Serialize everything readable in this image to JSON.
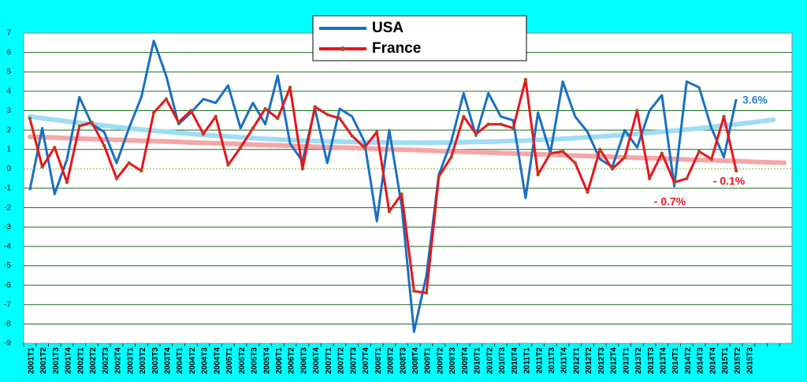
{
  "chart_data": {
    "type": "line",
    "categories": [
      "2001T1",
      "2001T2",
      "2001T3",
      "2001T4",
      "2002T1",
      "2002T2",
      "2002T3",
      "2002T4",
      "2003T1",
      "2003T2",
      "2003T3",
      "2003T4",
      "2004T1",
      "2004T2",
      "2004T3",
      "2004T4",
      "2005T1",
      "2005T2",
      "2005T3",
      "2005T4",
      "2006T1",
      "2006T2",
      "2006T3",
      "2006T4",
      "2007T1",
      "2007T2",
      "2007T3",
      "2007T4",
      "2008T1",
      "2008T2",
      "2008T3",
      "2008T4",
      "2009T1",
      "2009T2",
      "2009T3",
      "2009T4",
      "2010T1",
      "2010T2",
      "2010T3",
      "2010T4",
      "2011T1",
      "2011T2",
      "2011T3",
      "2011T4",
      "2012T1",
      "2012T2",
      "2012T3",
      "2012T4",
      "2013T1",
      "2013T2",
      "2013T3",
      "2013T4",
      "2014T1",
      "2014T2",
      "2014T3",
      "2014T4",
      "2015T1",
      "2015T2",
      "2015T3",
      null,
      null,
      null
    ],
    "series": [
      {
        "name": "USA",
        "color": "#1b6fc0",
        "values": [
          -1.1,
          2.1,
          -1.3,
          0.5,
          3.7,
          2.3,
          1.9,
          0.3,
          2.1,
          3.7,
          6.6,
          4.8,
          2.3,
          2.9,
          3.6,
          3.4,
          4.3,
          2.1,
          3.4,
          2.3,
          4.8,
          1.3,
          0.4,
          3.1,
          0.3,
          3.1,
          2.7,
          1.4,
          -2.7,
          2.0,
          -1.9,
          -8.4,
          -5.5,
          -0.3,
          1.4,
          3.9,
          1.7,
          3.9,
          2.7,
          2.5,
          -1.5,
          2.9,
          0.8,
          4.5,
          2.7,
          1.9,
          0.5,
          0.1,
          2.0,
          1.1,
          3.0,
          3.8,
          -0.9,
          4.5,
          4.2,
          2.1,
          0.6,
          3.6,
          null,
          null,
          null,
          null
        ]
      },
      {
        "name": "France",
        "color": "#e8141c",
        "marker_color": "#a0521e",
        "values": [
          2.6,
          0.1,
          1.1,
          -0.7,
          2.2,
          2.4,
          1.2,
          -0.5,
          0.3,
          -0.1,
          2.9,
          3.6,
          2.4,
          3.0,
          1.8,
          2.7,
          0.2,
          1.1,
          2.1,
          3.1,
          2.6,
          4.2,
          0.0,
          3.2,
          2.8,
          2.6,
          1.7,
          1.1,
          1.9,
          -2.2,
          -1.3,
          -6.3,
          -6.4,
          -0.4,
          0.6,
          2.7,
          1.8,
          2.3,
          2.3,
          2.1,
          4.6,
          -0.3,
          0.8,
          0.9,
          0.3,
          -1.2,
          1.0,
          0.0,
          0.6,
          3.0,
          -0.5,
          0.8,
          -0.7,
          -0.5,
          0.9,
          0.5,
          2.7,
          -0.1,
          null,
          null,
          null,
          null
        ]
      }
    ],
    "trendlines": [
      {
        "color": "#9fdcf5",
        "values": [
          2.7,
          2.61,
          2.53,
          2.45,
          2.37,
          2.3,
          2.23,
          2.16,
          2.09,
          2.03,
          1.97,
          1.91,
          1.86,
          1.8,
          1.75,
          1.71,
          1.67,
          1.62,
          1.59,
          1.55,
          1.52,
          1.49,
          1.46,
          1.44,
          1.42,
          1.4,
          1.39,
          1.37,
          1.36,
          1.36,
          1.35,
          1.35,
          1.35,
          1.36,
          1.36,
          1.37,
          1.39,
          1.4,
          1.42,
          1.44,
          1.46,
          1.49,
          1.52,
          1.55,
          1.59,
          1.62,
          1.67,
          1.71,
          1.75,
          1.8,
          1.86,
          1.91,
          1.97,
          2.03,
          2.09,
          2.16,
          2.23,
          2.3,
          2.37,
          2.45,
          2.53,
          null
        ]
      },
      {
        "color": "#f5a6a6",
        "values": [
          1.65,
          1.63,
          1.61,
          1.58,
          1.56,
          1.54,
          1.52,
          1.5,
          1.47,
          1.45,
          1.43,
          1.41,
          1.39,
          1.36,
          1.34,
          1.32,
          1.3,
          1.28,
          1.25,
          1.23,
          1.21,
          1.19,
          1.17,
          1.14,
          1.12,
          1.1,
          1.08,
          1.06,
          1.03,
          1.01,
          0.99,
          0.97,
          0.95,
          0.92,
          0.9,
          0.88,
          0.86,
          0.84,
          0.81,
          0.79,
          0.77,
          0.75,
          0.73,
          0.7,
          0.68,
          0.66,
          0.64,
          0.62,
          0.59,
          0.57,
          0.55,
          0.53,
          0.51,
          0.48,
          0.46,
          0.44,
          0.42,
          0.4,
          0.37,
          0.35,
          0.33,
          0.31
        ]
      }
    ],
    "annotations": [
      {
        "text": "3.6%",
        "color": "#2a80d0"
      },
      {
        "text": "- 0.1%",
        "color": "#e8141c"
      },
      {
        "text": "- 0.7%",
        "color": "#e8141c"
      }
    ],
    "ylim": [
      -9,
      7
    ],
    "yticks": [
      -9,
      -8,
      -7,
      -6,
      -5,
      -4,
      -3,
      -2,
      -1,
      0,
      1,
      2,
      3,
      4,
      5,
      6,
      7
    ],
    "grid": true,
    "grid_color": "#1a6b1a",
    "zero_line_color": "#7fbf3f"
  }
}
